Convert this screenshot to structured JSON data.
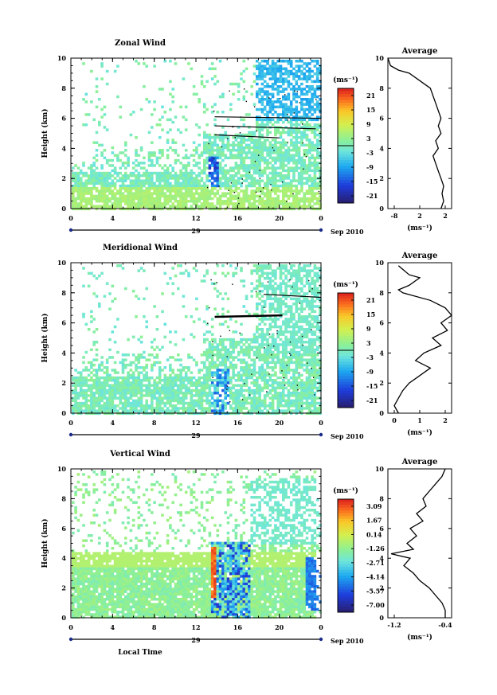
{
  "chart_data": [
    {
      "type": "heatmap",
      "title": "Zonal Wind",
      "ylabel": "Height (km)",
      "xlim": [
        0,
        24
      ],
      "ylim": [
        0,
        10
      ],
      "xticks": [
        "0",
        "4",
        "8",
        "12",
        "16",
        "20",
        "0"
      ],
      "yticks": [
        "0",
        "2",
        "4",
        "6",
        "8",
        "10"
      ],
      "date_label": "29",
      "month_label": "Sep 2010",
      "colorbar": {
        "unit": "(ms⁻¹)",
        "ticks": [
          "21",
          "15",
          "9",
          "3",
          "-3",
          "-9",
          "-15",
          "-21"
        ],
        "range": [
          -24,
          24
        ]
      },
      "profile": {
        "title": "Average",
        "xlabel": "(ms⁻¹)",
        "xticks": [
          "-8",
          "2",
          "2"
        ],
        "xlim": [
          -8,
          4
        ],
        "points": [
          [
            -8,
            10
          ],
          [
            -7.5,
            9.5
          ],
          [
            -6,
            9.2
          ],
          [
            -4,
            9
          ],
          [
            -2,
            8.5
          ],
          [
            0,
            8
          ],
          [
            1,
            7
          ],
          [
            2,
            6
          ],
          [
            1.5,
            5.5
          ],
          [
            2,
            5
          ],
          [
            1,
            4.5
          ],
          [
            1.5,
            4
          ],
          [
            0.5,
            3.5
          ],
          [
            1,
            3
          ],
          [
            1.5,
            2.5
          ],
          [
            2,
            2
          ],
          [
            2.5,
            1.5
          ],
          [
            2.2,
            1
          ],
          [
            2.5,
            0.5
          ],
          [
            2,
            0
          ]
        ]
      }
    },
    {
      "type": "heatmap",
      "title": "Meridional Wind",
      "ylabel": "Height (km)",
      "xlim": [
        0,
        24
      ],
      "ylim": [
        0,
        10
      ],
      "xticks": [
        "0",
        "4",
        "8",
        "12",
        "16",
        "20",
        "0"
      ],
      "yticks": [
        "0",
        "2",
        "4",
        "6",
        "8",
        "10"
      ],
      "date_label": "29",
      "month_label": "Sep 2010",
      "colorbar": {
        "unit": "(ms⁻¹)",
        "ticks": [
          "21",
          "15",
          "9",
          "3",
          "-3",
          "-9",
          "-15",
          "-21"
        ],
        "range": [
          -24,
          24
        ]
      },
      "profile": {
        "title": "Average",
        "xlabel": "(ms⁻¹)",
        "xticks": [
          "0",
          "1",
          "2"
        ],
        "xlim": [
          -0.5,
          2.5
        ],
        "points": [
          [
            0,
            9.8
          ],
          [
            0.5,
            9.2
          ],
          [
            1,
            9
          ],
          [
            0.5,
            8.5
          ],
          [
            0,
            8.2
          ],
          [
            0.2,
            8
          ],
          [
            1.5,
            7.5
          ],
          [
            2.2,
            7
          ],
          [
            2.5,
            6.5
          ],
          [
            2,
            6
          ],
          [
            2.3,
            5.5
          ],
          [
            1.6,
            5
          ],
          [
            2,
            4.5
          ],
          [
            1.2,
            4
          ],
          [
            0.8,
            3.5
          ],
          [
            1.5,
            3
          ],
          [
            1,
            2.5
          ],
          [
            0.5,
            2
          ],
          [
            0.2,
            1.5
          ],
          [
            0,
            1
          ],
          [
            -0.2,
            0.5
          ],
          [
            0,
            0
          ]
        ]
      }
    },
    {
      "type": "heatmap",
      "title": "Vertical Wind",
      "ylabel": "Height (km)",
      "xlabel": "Local Time",
      "xlim": [
        0,
        24
      ],
      "ylim": [
        0,
        10
      ],
      "xticks": [
        "0",
        "4",
        "8",
        "12",
        "16",
        "20",
        "0"
      ],
      "yticks": [
        "0",
        "2",
        "4",
        "6",
        "8",
        "10"
      ],
      "date_label": "29",
      "month_label": "Sep 2010",
      "colorbar": {
        "unit": "(ms⁻¹)",
        "ticks": [
          "3.09",
          "1.67",
          "0.14",
          "-1.26",
          "-2.71",
          "-4.14",
          "-5.57",
          "-7.00"
        ],
        "range": [
          -7.7,
          3.8
        ]
      },
      "profile": {
        "title": "Average",
        "xlabel": "(ms⁻¹)",
        "xticks": [
          "-1.2",
          "-0.4"
        ],
        "xlim": [
          -1.3,
          -0.3
        ],
        "points": [
          [
            -0.4,
            10
          ],
          [
            -0.45,
            9.5
          ],
          [
            -0.55,
            9
          ],
          [
            -0.65,
            8.5
          ],
          [
            -0.75,
            8
          ],
          [
            -0.7,
            7.5
          ],
          [
            -0.85,
            7
          ],
          [
            -0.75,
            6.5
          ],
          [
            -0.95,
            6
          ],
          [
            -0.85,
            5.5
          ],
          [
            -1.0,
            5
          ],
          [
            -0.9,
            4.6
          ],
          [
            -1.25,
            4.3
          ],
          [
            -0.95,
            4
          ],
          [
            -1.05,
            3.5
          ],
          [
            -0.9,
            3
          ],
          [
            -0.8,
            2.5
          ],
          [
            -0.65,
            2
          ],
          [
            -0.55,
            1.5
          ],
          [
            -0.45,
            1
          ],
          [
            -0.4,
            0.5
          ],
          [
            -0.4,
            0
          ]
        ]
      }
    }
  ]
}
